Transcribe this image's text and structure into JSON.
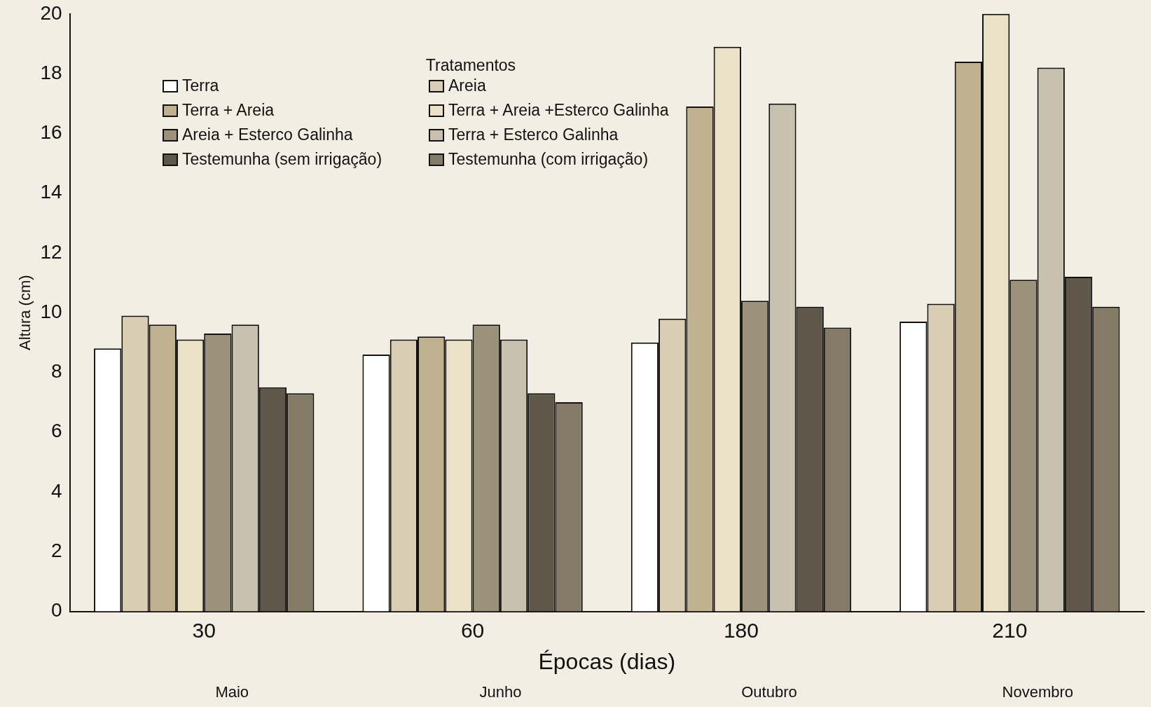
{
  "chart_data": {
    "type": "bar",
    "xlabel": "Épocas (dias)",
    "ylabel": "Altura (cm)",
    "legend_title": "Tratamentos",
    "legend": "top left",
    "grid": false,
    "categories": [
      "30",
      "60",
      "180",
      "210"
    ],
    "ylim": [
      0,
      20
    ],
    "yticks": [
      0,
      2,
      4,
      6,
      8,
      10,
      12,
      14,
      16,
      18,
      20
    ],
    "series": [
      {
        "name": "Terra",
        "color": "#ffffff",
        "values": [
          8.8,
          8.6,
          9.0,
          9.7
        ]
      },
      {
        "name": "Areia",
        "color": "#d9cdb4",
        "values": [
          9.9,
          9.1,
          9.8,
          10.3
        ]
      },
      {
        "name": "Terra + Areia",
        "color": "#bfb08f",
        "values": [
          9.6,
          9.2,
          16.9,
          18.4
        ]
      },
      {
        "name": "Terra + Areia +Esterco Galinha",
        "color": "#ebe1c9",
        "values": [
          9.1,
          9.1,
          18.9,
          20.0
        ]
      },
      {
        "name": "Areia + Esterco Galinha",
        "color": "#9c927c",
        "values": [
          9.3,
          9.6,
          10.4,
          11.1
        ]
      },
      {
        "name": "Terra + Esterco Galinha",
        "color": "#c8c1b0",
        "values": [
          9.6,
          9.1,
          17.0,
          18.2
        ]
      },
      {
        "name": "Testemunha (sem irrigação)",
        "color": "#5e574a",
        "values": [
          7.5,
          7.3,
          10.2,
          11.2
        ]
      },
      {
        "name": "Testemunha (com irrigação)",
        "color": "#837a68",
        "values": [
          7.3,
          7.0,
          9.5,
          10.2
        ]
      }
    ],
    "annotations": [
      "Maio",
      "Junho",
      "Outubro",
      "Novembro"
    ]
  }
}
